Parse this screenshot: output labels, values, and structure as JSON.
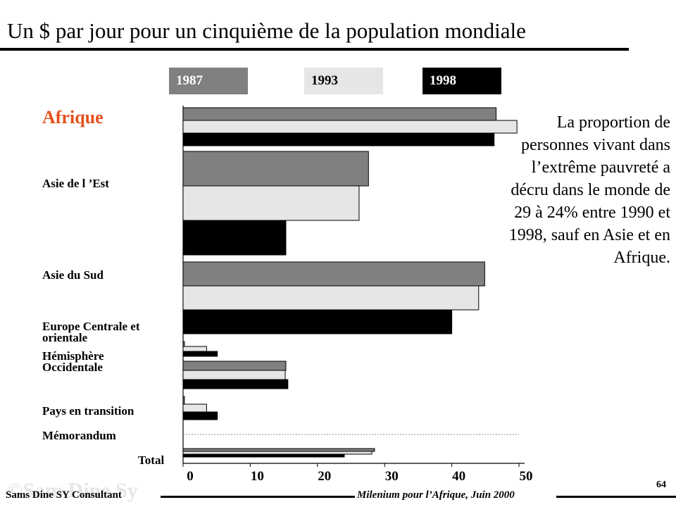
{
  "slide": {
    "title": "Un $  par jour pour un cinquième de la population mondiale",
    "side_text": "La proportion de personnes vivant dans l’extrême pauvreté a décru dans le monde de 29 à 24% entre 1990 et 1998, sauf en Asie et en Afrique.",
    "footer_left": "Sams Dine SY Consultant",
    "footer_right": "Milenium pour l’Afrique, Juin 2000",
    "page_number": "64",
    "watermark": "©Sam Dine Sy"
  },
  "chart_data": {
    "type": "bar",
    "orientation": "horizontal",
    "categories": [
      "Afrique",
      "Asie de l ’Est",
      "Asie du Sud",
      "Europe Centrale et orientale",
      "Hémisphère Occidentale",
      "Pays en transition",
      "Mémorandum",
      "Total"
    ],
    "series": [
      {
        "name": "1987",
        "color": "#808080",
        "values": [
          46.6,
          27.6,
          44.9,
          0.2,
          15.3,
          0.2,
          null,
          28.5
        ]
      },
      {
        "name": "1993",
        "color": "#e6e6e6",
        "values": [
          49.7,
          26.2,
          44.0,
          3.5,
          15.2,
          3.5,
          null,
          28.1
        ]
      },
      {
        "name": "1998",
        "color": "#000000",
        "values": [
          46.3,
          15.3,
          40.0,
          5.1,
          15.6,
          5.1,
          null,
          24.0
        ]
      }
    ],
    "xticks": [
      0,
      10,
      20,
      30,
      40,
      50
    ],
    "xlim": [
      0,
      50
    ],
    "legend_position": "top"
  }
}
